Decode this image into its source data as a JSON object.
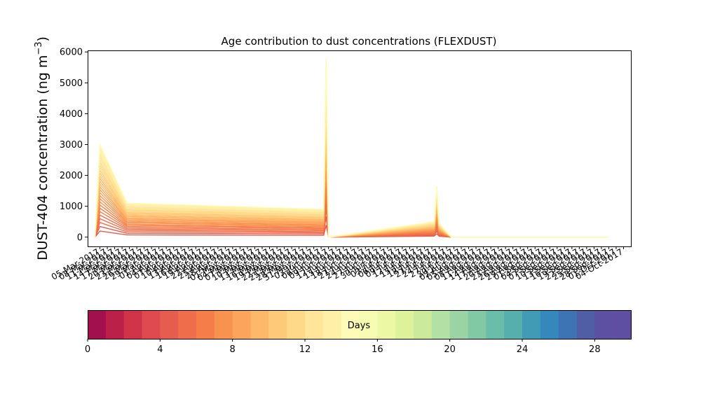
{
  "chart_data": [
    {
      "type": "line",
      "title": "Age contribution to dust concentrations (FLEXDUST)",
      "ylabel_main": "DUST-404 concentration (ng m",
      "ylabel_unit_exp": "−3",
      "ylabel_close": ")",
      "ylim": [
        -300,
        6050
      ],
      "yticks": [
        0,
        1000,
        2000,
        3000,
        4000,
        5000,
        6000
      ],
      "grid": false,
      "legend": "none",
      "x_dates": [
        "05-Mar-2017",
        "08-Mar-2017",
        "11-Mar-2017",
        "14-Mar-2017",
        "17-Mar-2017",
        "20-Mar-2017",
        "23-Mar-2017",
        "26-Mar-2017",
        "29-Mar-2017",
        "01-Apr-2017",
        "04-Apr-2017",
        "07-Apr-2017",
        "10-Apr-2017",
        "13-Apr-2017",
        "16-Apr-2017",
        "19-Apr-2017",
        "22-Apr-2017",
        "25-Apr-2017",
        "28-Apr-2017",
        "01-May-2017",
        "04-May-2017",
        "07-May-2017",
        "10-May-2017",
        "13-May-2017",
        "16-May-2017",
        "19-May-2017",
        "22-May-2017",
        "25-May-2017",
        "28-May-2017",
        "31-May-2017",
        "03-Jun-2017",
        "06-Jun-2017",
        "09-Jun-2017",
        "12-Jun-2017",
        "15-Jun-2017",
        "18-Jun-2017",
        "21-Jun-2017",
        "24-Jun-2017",
        "27-Jun-2017",
        "30-Jun-2017",
        "03-Jul-2017",
        "06-Jul-2017",
        "09-Jul-2017",
        "12-Jul-2017",
        "15-Jul-2017",
        "18-Jul-2017",
        "21-Jul-2017",
        "24-Jul-2017",
        "27-Jul-2017",
        "30-Jul-2017",
        "02-Aug-2017",
        "05-Aug-2017",
        "08-Aug-2017",
        "11-Aug-2017",
        "14-Aug-2017",
        "17-Aug-2017",
        "20-Aug-2017",
        "23-Aug-2017",
        "26-Aug-2017",
        "29-Aug-2017",
        "01-Sep-2017",
        "04-Sep-2017",
        "07-Sep-2017",
        "10-Sep-2017",
        "13-Sep-2017",
        "16-Sep-2017",
        "19-Sep-2017",
        "22-Sep-2017",
        "25-Sep-2017",
        "28-Sep-2017",
        "01-Oct-2017",
        "04-Oct-2017"
      ],
      "series_days": [
        0,
        1,
        2,
        3,
        4,
        5,
        6,
        7,
        8,
        9,
        10,
        11,
        12,
        13,
        14,
        15,
        16,
        17,
        18,
        19,
        20,
        21,
        22,
        23,
        24,
        25,
        26,
        27,
        28,
        29
      ],
      "total_by_date": [
        [
          "03-Mar-2017",
          0
        ],
        [
          "05-Mar-2017",
          3000
        ],
        [
          "16-Mar-2017",
          1100
        ],
        [
          "04-Jun-2017",
          900
        ],
        [
          "05-Jun-2017",
          5800
        ],
        [
          "06-Jun-2017",
          0
        ],
        [
          "19-Jul-2017",
          500
        ],
        [
          "20-Jul-2017",
          1650
        ],
        [
          "21-Jul-2017",
          450
        ],
        [
          "26-Jul-2017",
          0
        ],
        [
          "28-Sep-2017",
          0
        ]
      ]
    },
    {
      "type": "colorbar",
      "label": "Days",
      "ticks": [
        0,
        4,
        8,
        12,
        16,
        20,
        24,
        28
      ],
      "range": [
        0,
        30
      ],
      "colors": [
        "#a2114d",
        "#ba2049",
        "#cf3546",
        "#de4a4d",
        "#e65d50",
        "#ef6d4a",
        "#f57d4a",
        "#f8924f",
        "#fba45c",
        "#fdb869",
        "#fdca78",
        "#fed98a",
        "#fee59a",
        "#fff0a8",
        "#fffab6",
        "#f7fcb3",
        "#edf8a4",
        "#def299",
        "#cbea9c",
        "#b3e0a3",
        "#9ad4a4",
        "#81c9a4",
        "#6abda9",
        "#56aead",
        "#419bb4",
        "#3488bc",
        "#3e74b3",
        "#4e5fa6",
        "#5d4fa2",
        "#5e4fa2"
      ]
    }
  ]
}
